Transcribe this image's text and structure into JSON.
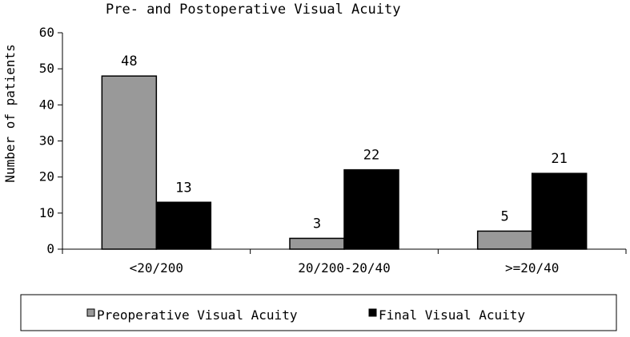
{
  "chart_data": {
    "type": "bar",
    "title": "Pre- and Postoperative Visual Acuity",
    "xlabel": "",
    "ylabel": "Number of patients",
    "ylim": [
      0,
      60
    ],
    "yticks": [
      0,
      10,
      20,
      30,
      40,
      50,
      60
    ],
    "categories": [
      "<20/200",
      "20/200-20/40",
      ">=20/40"
    ],
    "series": [
      {
        "name": "Preoperative Visual Acuity",
        "values": [
          48,
          3,
          5
        ],
        "color": "#999999"
      },
      {
        "name": "Final Visual Acuity",
        "values": [
          13,
          22,
          21
        ],
        "color": "#000000"
      }
    ],
    "grid": false,
    "legend": "bottom",
    "data_labels": true
  }
}
